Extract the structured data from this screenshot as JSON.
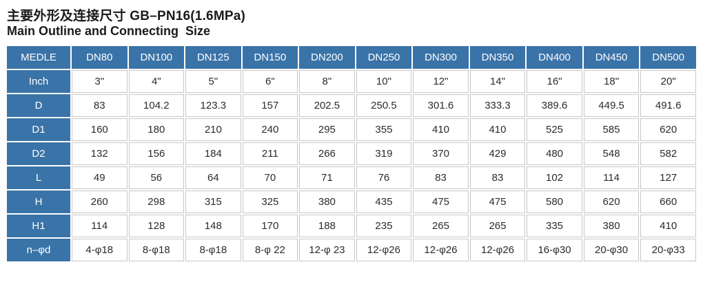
{
  "title": {
    "line1": "主要外形及连接尺寸 GB–PN16(1.6MPa)",
    "line2": "Main Outline and Connecting  Size"
  },
  "table": {
    "header": [
      "MEDLE",
      "DN80",
      "DN100",
      "DN125",
      "DN150",
      "DN200",
      "DN250",
      "DN300",
      "DN350",
      "DN400",
      "DN450",
      "DN500"
    ],
    "rows": [
      {
        "label": "Inch",
        "values": [
          "3\"",
          "4\"",
          "5\"",
          "6\"",
          "8\"",
          "10\"",
          "12\"",
          "14\"",
          "16\"",
          "18\"",
          "20\""
        ]
      },
      {
        "label": "D",
        "values": [
          "83",
          "104.2",
          "123.3",
          "157",
          "202.5",
          "250.5",
          "301.6",
          "333.3",
          "389.6",
          "449.5",
          "491.6"
        ]
      },
      {
        "label": "D1",
        "values": [
          "160",
          "180",
          "210",
          "240",
          "295",
          "355",
          "410",
          "410",
          "525",
          "585",
          "620"
        ]
      },
      {
        "label": "D2",
        "values": [
          "132",
          "156",
          "184",
          "211",
          "266",
          "319",
          "370",
          "429",
          "480",
          "548",
          "582"
        ]
      },
      {
        "label": "L",
        "values": [
          "49",
          "56",
          "64",
          "70",
          "71",
          "76",
          "83",
          "83",
          "102",
          "114",
          "127"
        ]
      },
      {
        "label": "H",
        "values": [
          "260",
          "298",
          "315",
          "325",
          "380",
          "435",
          "475",
          "475",
          "580",
          "620",
          "660"
        ]
      },
      {
        "label": "H1",
        "values": [
          "114",
          "128",
          "148",
          "170",
          "188",
          "235",
          "265",
          "265",
          "335",
          "380",
          "410"
        ]
      },
      {
        "label": "n–φd",
        "values": [
          "4-φ18",
          "8-φ18",
          "8-φ18",
          "8-φ 22",
          "12-φ 23",
          "12-φ26",
          "12-φ26",
          "12-φ26",
          "16-φ30",
          "20-φ30",
          "20-φ33"
        ]
      }
    ]
  },
  "colors": {
    "header_blue": "#3a73a8",
    "border_gray": "#c6c6c6",
    "text_dark": "#1a1a1a"
  }
}
